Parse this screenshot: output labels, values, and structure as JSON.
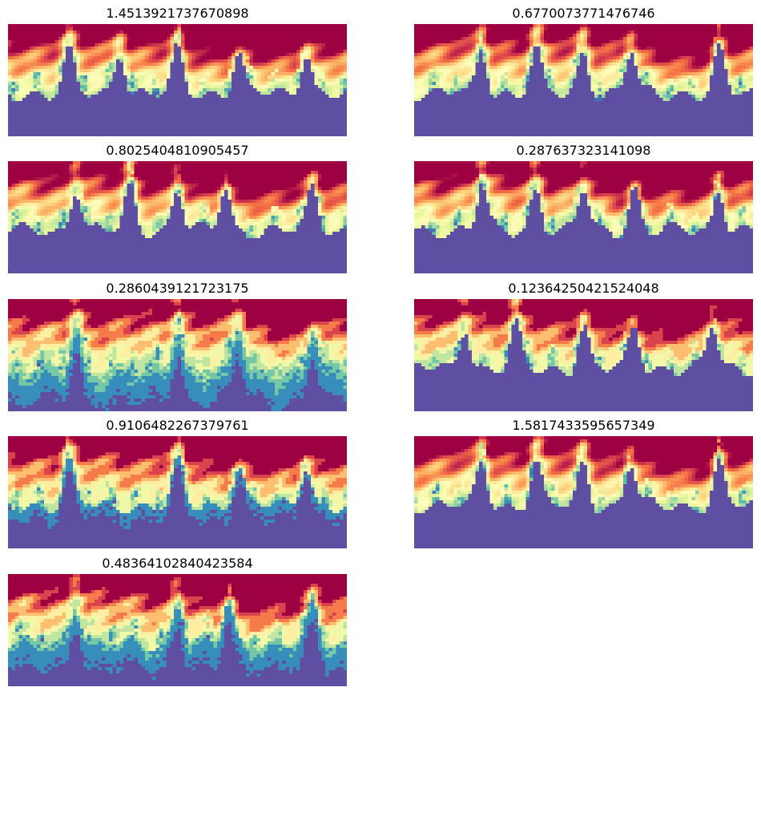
{
  "figure": {
    "colormap": "Spectral",
    "colormap_stops": [
      "#5e4fa2",
      "#3288bd",
      "#66c2a5",
      "#abdda4",
      "#e6f598",
      "#ffffbf",
      "#fee08b",
      "#fdae61",
      "#f46d43",
      "#d53e4f",
      "#9e0142"
    ],
    "axes_visible": false,
    "grid": false,
    "legend": "none"
  },
  "chart_data": [
    {
      "type": "heatmap",
      "title": "1.4513921737670898",
      "render": "smooth",
      "dips": [
        0.18,
        0.33,
        0.5,
        0.68,
        0.88
      ],
      "hot_corner": "top-right",
      "hot_region": 0.6,
      "floor_level": 0.0
    },
    {
      "type": "heatmap",
      "title": "0.6770073771476746",
      "render": "smooth",
      "dips": [
        0.2,
        0.36,
        0.5,
        0.64,
        0.9
      ],
      "hot_corner": "top-right",
      "hot_region": 0.45,
      "floor_level": 0.0
    },
    {
      "type": "heatmap",
      "title": "0.8025404810905457",
      "render": "smooth",
      "dips": [
        0.2,
        0.36,
        0.5,
        0.64,
        0.9
      ],
      "hot_corner": "top-right",
      "hot_region": 0.65,
      "floor_level": 0.0
    },
    {
      "type": "heatmap",
      "title": "0.287637323141098",
      "render": "smooth",
      "dips": [
        0.2,
        0.36,
        0.5,
        0.65,
        0.9
      ],
      "hot_corner": "top-right",
      "hot_region": 0.65,
      "floor_level": 0.0
    },
    {
      "type": "heatmap",
      "title": "0.2860439121723175",
      "render": "contour",
      "dips": [
        0.2,
        0.5,
        0.68,
        0.9
      ],
      "hot_corner": "top-right",
      "hot_region": 0.35,
      "floor_level": 0.3
    },
    {
      "type": "heatmap",
      "title": "0.12364250421524048",
      "render": "contour",
      "dips": [
        0.15,
        0.3,
        0.5,
        0.65,
        0.88
      ],
      "hot_corner": "top-right",
      "hot_region": 0.65,
      "floor_level": 0.0
    },
    {
      "type": "heatmap",
      "title": "0.9106482267379761",
      "render": "contour",
      "dips": [
        0.18,
        0.5,
        0.68,
        0.88
      ],
      "hot_corner": "top-right",
      "hot_region": 0.55,
      "floor_level": 0.1
    },
    {
      "type": "heatmap",
      "title": "1.5817433595657349",
      "render": "smooth",
      "dips": [
        0.2,
        0.36,
        0.5,
        0.64,
        0.9
      ],
      "hot_corner": "top-right",
      "hot_region": 0.5,
      "floor_level": 0.0
    },
    {
      "type": "heatmap",
      "title": "0.48364102840423584",
      "render": "contour",
      "dips": [
        0.2,
        0.5,
        0.65,
        0.9
      ],
      "hot_corner": "top-right",
      "hot_region": 0.6,
      "floor_level": 0.2
    }
  ]
}
